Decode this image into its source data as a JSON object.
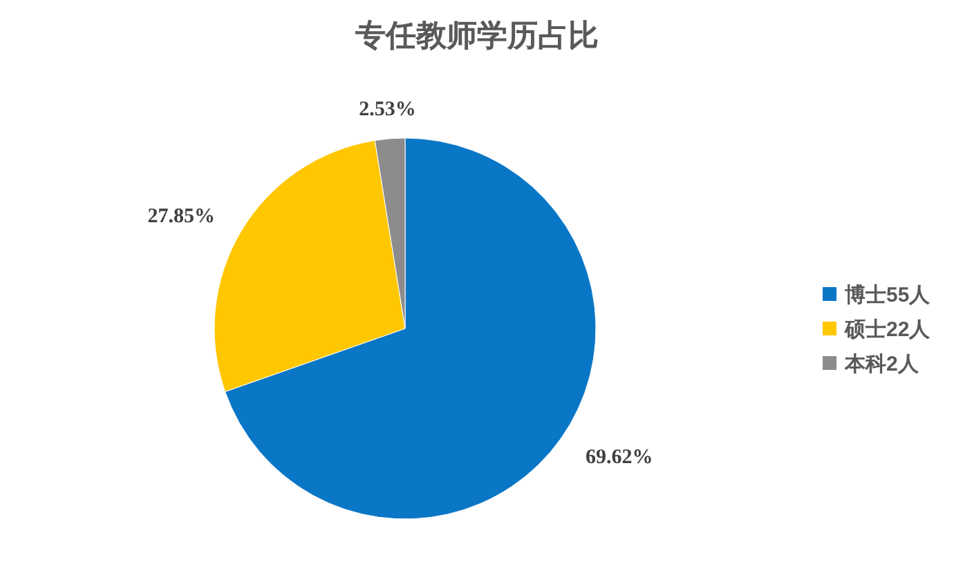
{
  "chart_data": {
    "type": "pie",
    "title": "专任教师学历占比",
    "categories": [
      "博士55人",
      "硕士22人",
      "本科2人"
    ],
    "values": [
      69.62,
      27.85,
      2.53
    ],
    "colors": [
      "#0a76c6",
      "#ffc700",
      "#8c8c8c"
    ],
    "value_labels": [
      "69.62%",
      "27.85%",
      "2.53%"
    ],
    "legend": "right"
  }
}
